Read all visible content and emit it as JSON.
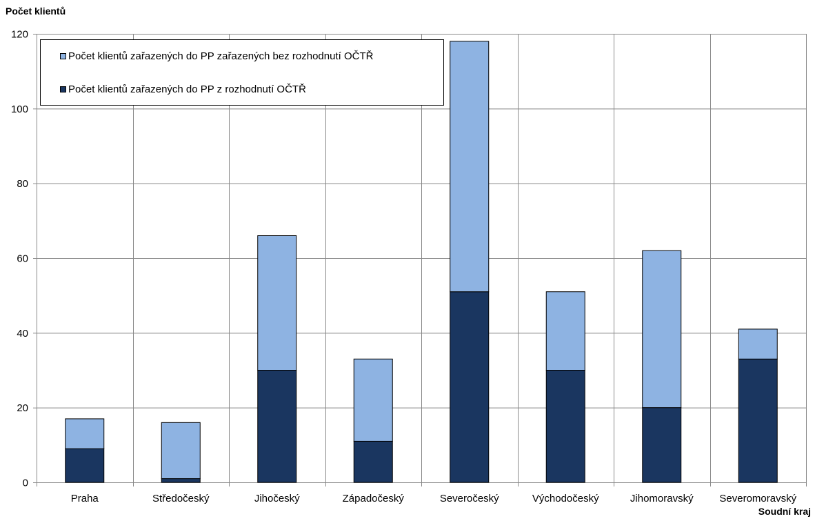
{
  "chart_data": {
    "type": "bar",
    "stacked": true,
    "ylabel": "Počet klientů",
    "xlabel": "Soudní kraj",
    "ylim": [
      0,
      120
    ],
    "yticks": [
      0,
      20,
      40,
      60,
      80,
      100,
      120
    ],
    "grid": true,
    "legend_position": "top-left",
    "categories": [
      "Praha",
      "Středočeský",
      "Jihočeský",
      "Západočeský",
      "Severočeský",
      "Východočeský",
      "Jihomoravský",
      "Severomoravský"
    ],
    "series": [
      {
        "name": "Počet klientů zařazených do PP z rozhodnutí OČTŘ",
        "color": "#1a3660",
        "values": [
          9,
          1,
          30,
          11,
          51,
          30,
          20,
          33
        ]
      },
      {
        "name": "Počet klientů zařazených do PP zařazených bez rozhodnutí OČTŘ",
        "color": "#8eb3e2",
        "values": [
          8,
          15,
          36,
          22,
          67,
          21,
          42,
          8
        ]
      }
    ]
  }
}
